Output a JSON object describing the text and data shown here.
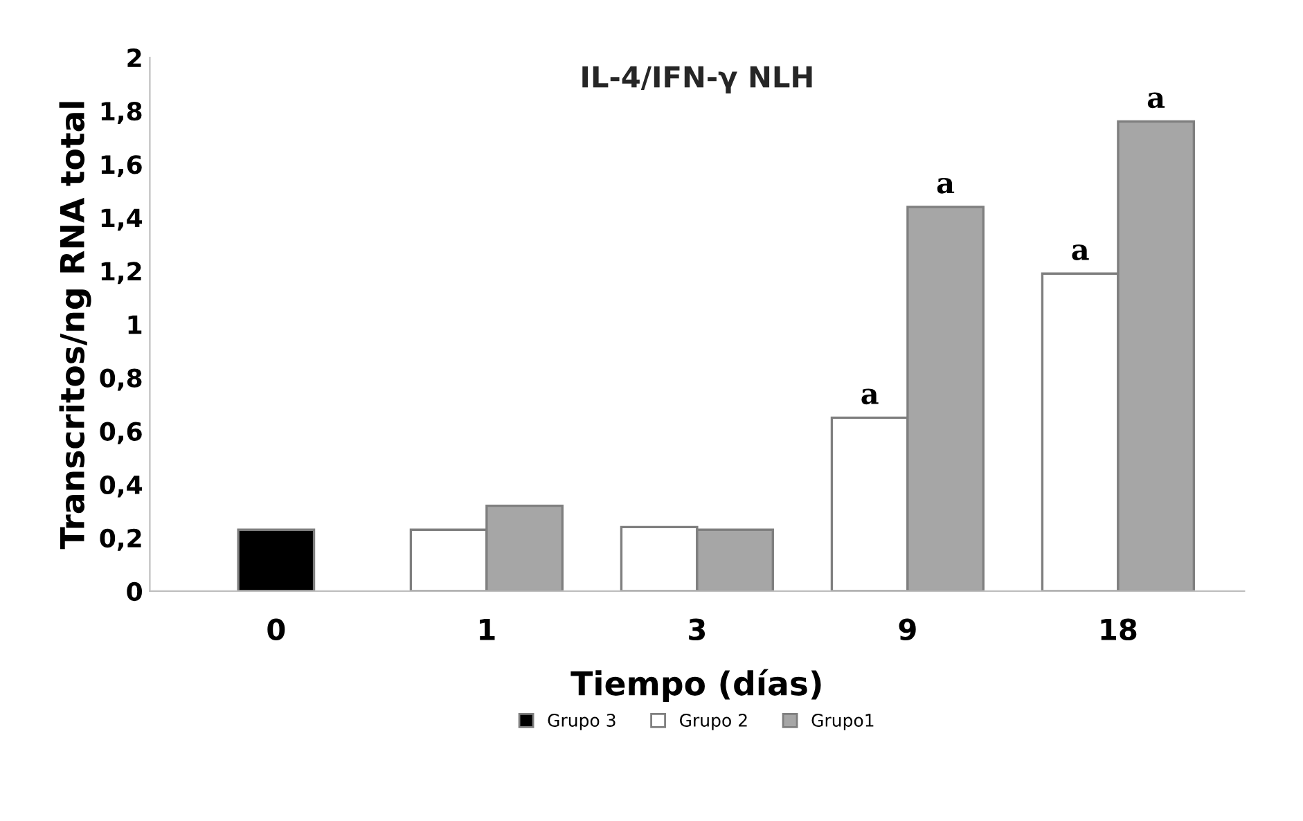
{
  "chart_data": {
    "type": "bar",
    "title": "IL-4/IFN-γ NLH",
    "xlabel": "Tiempo (días)",
    "ylabel": "Transcritos/ng RNA total",
    "categories": [
      "0",
      "1",
      "3",
      "9",
      "18"
    ],
    "series": [
      {
        "name": "Grupo 3",
        "color": "#000000",
        "values": [
          0.23,
          null,
          null,
          null,
          null
        ]
      },
      {
        "name": "Grupo 2",
        "color": "#ffffff",
        "values": [
          null,
          0.23,
          0.24,
          0.65,
          1.19
        ]
      },
      {
        "name": "Grupo1",
        "color": "#a6a6a6",
        "values": [
          null,
          0.32,
          0.23,
          1.44,
          1.76
        ]
      }
    ],
    "ylim": [
      0,
      2
    ],
    "yticks": [
      0,
      {
        "value": 0.2,
        "label": "0,2"
      },
      {
        "value": 0.4,
        "label": "0,4"
      },
      {
        "value": 0.6,
        "label": "0,6"
      },
      {
        "value": 0.8,
        "label": "0,8"
      },
      1,
      {
        "value": 1.2,
        "label": "1,2"
      },
      {
        "value": 1.4,
        "label": "1,4"
      },
      {
        "value": 1.6,
        "label": "1,6"
      },
      {
        "value": 1.8,
        "label": "1,8"
      },
      2
    ],
    "annotations": [
      {
        "text": "a",
        "x": "9",
        "y": 0.65
      },
      {
        "text": "a",
        "x": "9",
        "y": 1.44
      },
      {
        "text": "a",
        "x": "18",
        "y": 1.19
      },
      {
        "text": "a",
        "x": "18",
        "y": 1.76
      }
    ],
    "grid": false,
    "legend": "bottom"
  }
}
